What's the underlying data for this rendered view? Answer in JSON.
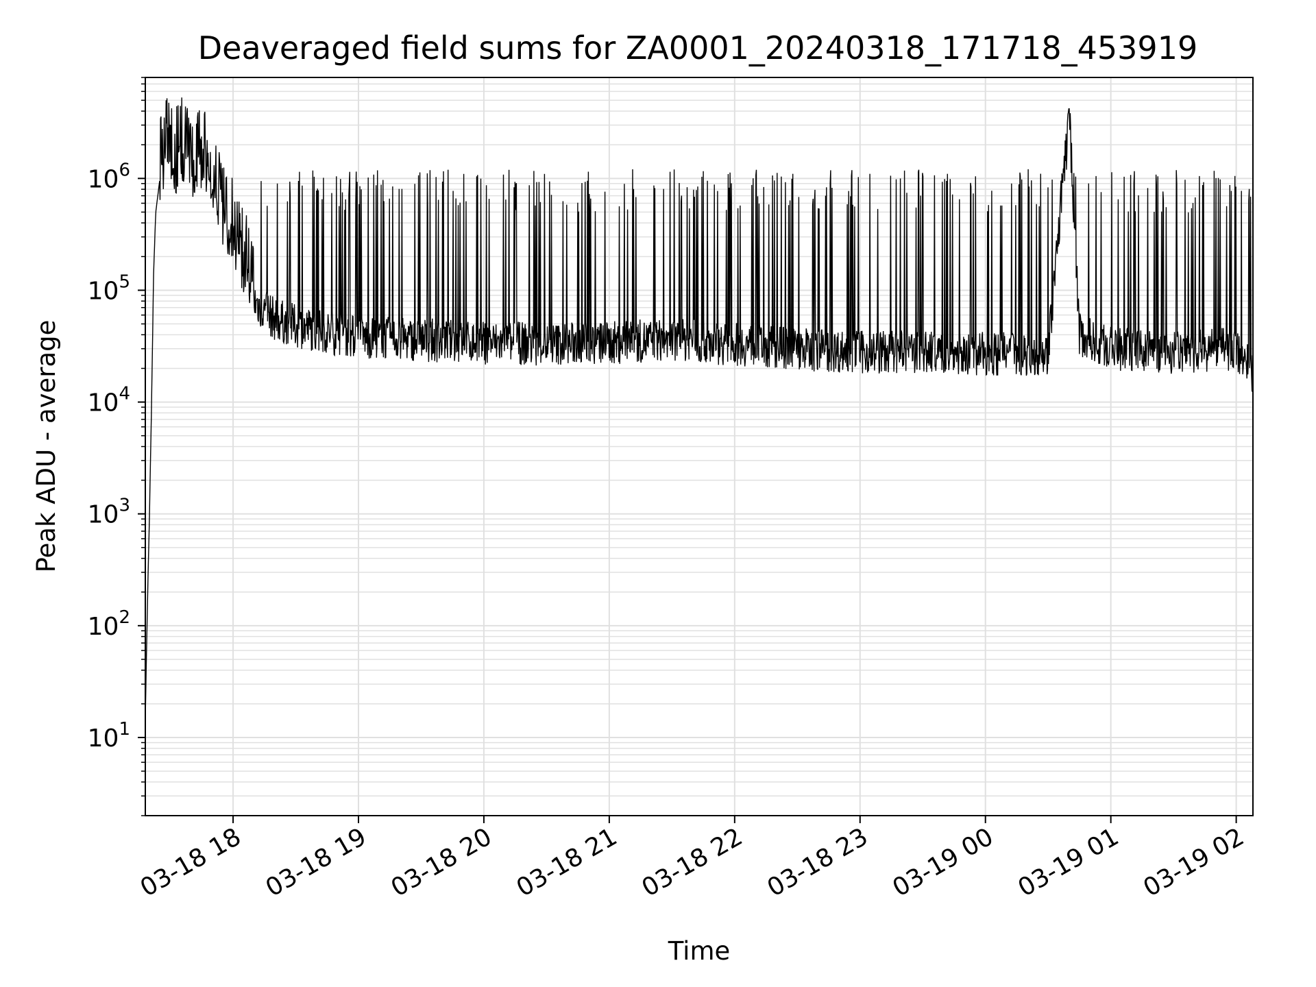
{
  "chart_data": {
    "type": "line",
    "title": "Deaveraged field sums for ZA0001_20240318_171718_453919",
    "xlabel": "Time",
    "ylabel": "Peak ADU - average",
    "yscale": "log",
    "ylim": [
      2,
      8000000
    ],
    "xlim": [
      "2024-03-18 17:18",
      "2024-03-19 02:08"
    ],
    "grid": true,
    "line_color": "#000000",
    "grid_color": "#e0e0e0",
    "x_ticks": [
      {
        "value": "2024-03-18 18:00",
        "label": "03-18 18"
      },
      {
        "value": "2024-03-18 19:00",
        "label": "03-18 19"
      },
      {
        "value": "2024-03-18 20:00",
        "label": "03-18 20"
      },
      {
        "value": "2024-03-18 21:00",
        "label": "03-18 21"
      },
      {
        "value": "2024-03-18 22:00",
        "label": "03-18 22"
      },
      {
        "value": "2024-03-18 23:00",
        "label": "03-18 23"
      },
      {
        "value": "2024-03-19 00:00",
        "label": "03-19 00"
      },
      {
        "value": "2024-03-19 01:00",
        "label": "03-19 01"
      },
      {
        "value": "2024-03-19 02:00",
        "label": "03-19 02"
      }
    ],
    "y_ticks": [
      {
        "value": 10,
        "base": "10",
        "exp": "1"
      },
      {
        "value": 100,
        "base": "10",
        "exp": "2"
      },
      {
        "value": 1000,
        "base": "10",
        "exp": "3"
      },
      {
        "value": 10000,
        "base": "10",
        "exp": "4"
      },
      {
        "value": 100000,
        "base": "10",
        "exp": "5"
      },
      {
        "value": 1000000,
        "base": "10",
        "exp": "6"
      }
    ],
    "series": [
      {
        "points": [
          [
            "2024-03-18 17:18",
            15
          ],
          [
            "2024-03-18 17:19",
            150
          ],
          [
            "2024-03-18 17:20",
            1000
          ],
          [
            "2024-03-18 17:21",
            10000
          ],
          [
            "2024-03-18 17:22",
            150000
          ],
          [
            "2024-03-18 17:23",
            500000
          ],
          [
            "2024-03-18 17:25",
            1000000
          ],
          [
            "2024-03-18 17:28",
            1400000
          ],
          [
            "2024-03-18 17:32",
            1000000
          ],
          [
            "2024-03-18 17:36",
            1500000
          ],
          [
            "2024-03-18 17:40",
            900000
          ],
          [
            "2024-03-18 17:45",
            1300000
          ],
          [
            "2024-03-18 17:50",
            600000
          ],
          [
            "2024-03-18 17:55",
            400000
          ],
          [
            "2024-03-18 18:00",
            250000
          ],
          [
            "2024-03-18 18:05",
            150000
          ],
          [
            "2024-03-18 18:10",
            80000
          ],
          [
            "2024-03-18 18:20",
            55000
          ],
          [
            "2024-03-18 18:30",
            48000
          ],
          [
            "2024-03-18 18:45",
            42000
          ],
          [
            "2024-03-18 19:00",
            38000
          ],
          [
            "2024-03-18 19:30",
            36000
          ],
          [
            "2024-03-18 20:00",
            34000
          ],
          [
            "2024-03-18 20:30",
            33000
          ],
          [
            "2024-03-18 21:00",
            34000
          ],
          [
            "2024-03-18 21:30",
            36000
          ],
          [
            "2024-03-18 22:00",
            33000
          ],
          [
            "2024-03-18 22:30",
            30000
          ],
          [
            "2024-03-18 23:00",
            28000
          ],
          [
            "2024-03-18 23:30",
            28000
          ],
          [
            "2024-03-19 00:00",
            27000
          ],
          [
            "2024-03-19 00:30",
            27000
          ],
          [
            "2024-03-19 00:40",
            4200000
          ],
          [
            "2024-03-19 00:45",
            40000
          ],
          [
            "2024-03-19 01:00",
            30000
          ],
          [
            "2024-03-19 01:30",
            28000
          ],
          [
            "2024-03-19 02:00",
            30000
          ],
          [
            "2024-03-19 02:08",
            18000
          ]
        ],
        "spike_level": 1100000,
        "floor_level": 20000
      }
    ]
  }
}
